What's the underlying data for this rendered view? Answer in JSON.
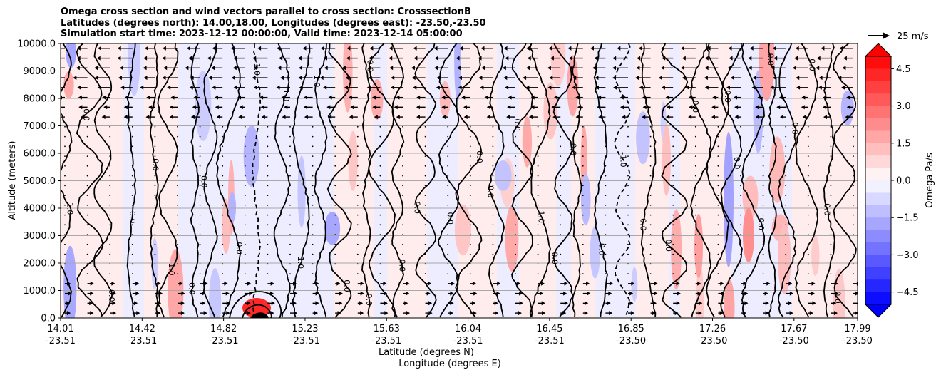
{
  "title_lines": [
    "Omega cross section and wind vectors parallel to cross section: CrosssectionB",
    "Latitudes (degrees north): 14.00,18.00, Longitudes (degrees east): -23.50,-23.50",
    "Simulation start time: 2023-12-12 00:00:00, Valid time: 2023-12-14 05:00:00"
  ],
  "chart_data": {
    "type": "heatmap",
    "ylabel": "Altitude (meters)",
    "xlabel_lines": [
      "Latitude (degrees N)",
      "Longitude (degrees E)"
    ],
    "ylim": [
      0,
      10000
    ],
    "y_ticks": [
      "0.0",
      "1000.0",
      "2000.0",
      "3000.0",
      "4000.0",
      "5000.0",
      "6000.0",
      "7000.0",
      "8000.0",
      "9000.0",
      "10000.0"
    ],
    "x_ticks": [
      {
        "lat": "14.01",
        "lon": "-23.51"
      },
      {
        "lat": "14.42",
        "lon": "-23.51"
      },
      {
        "lat": "14.82",
        "lon": "-23.51"
      },
      {
        "lat": "15.23",
        "lon": "-23.51"
      },
      {
        "lat": "15.63",
        "lon": "-23.51"
      },
      {
        "lat": "16.04",
        "lon": "-23.51"
      },
      {
        "lat": "16.45",
        "lon": "-23.51"
      },
      {
        "lat": "16.85",
        "lon": "-23.50"
      },
      {
        "lat": "17.26",
        "lon": "-23.50"
      },
      {
        "lat": "17.67",
        "lon": "-23.50"
      },
      {
        "lat": "17.99",
        "lon": "-23.50"
      }
    ],
    "horizontal_grid": true,
    "colorbar": {
      "label": "Omega Pa/s",
      "min": -5.0,
      "max": 5.0,
      "ticks": [
        "4.5",
        "3.0",
        "1.5",
        "0.0",
        "−1.5",
        "−3.0",
        "−4.5"
      ],
      "tick_values": [
        4.5,
        3.0,
        1.5,
        0.0,
        -1.5,
        -3.0,
        -4.5
      ],
      "negative_color": "#0000ff",
      "positive_color": "#ff0000"
    },
    "quiver_key": {
      "label": "25 m/s"
    },
    "contour_levels": [
      -1.0,
      0.0,
      1.0
    ],
    "contour_labels": [
      "0.0",
      "1.0",
      "-1.0"
    ]
  }
}
